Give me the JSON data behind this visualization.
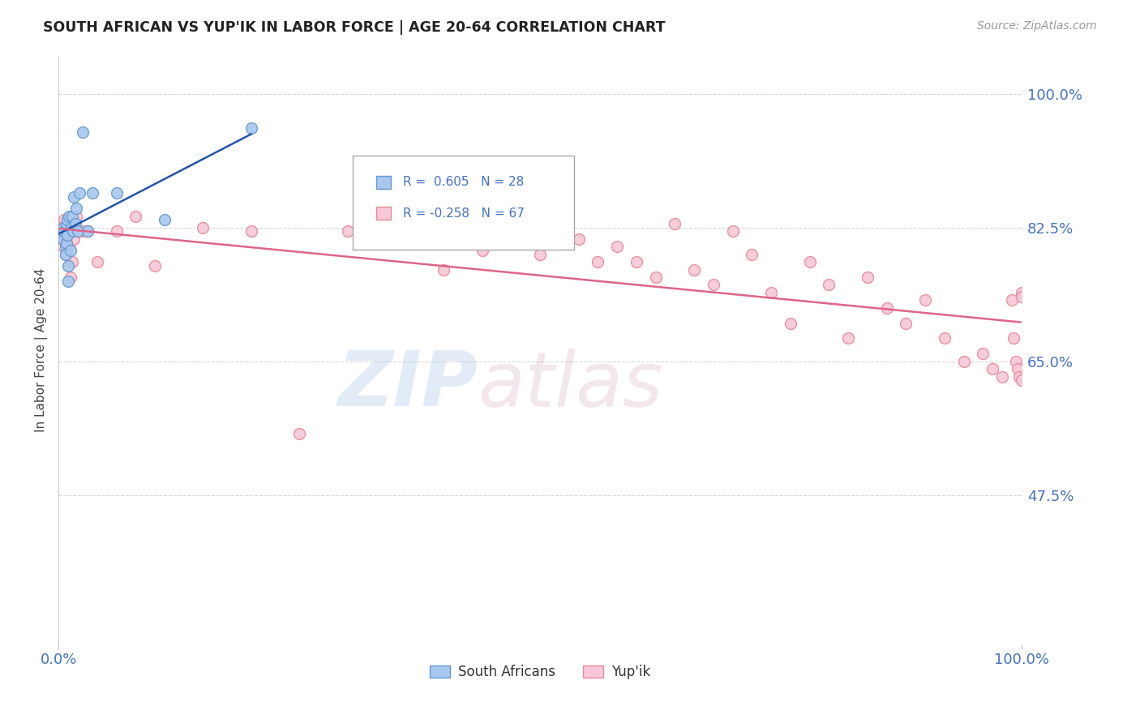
{
  "title": "SOUTH AFRICAN VS YUP'IK IN LABOR FORCE | AGE 20-64 CORRELATION CHART",
  "source": "Source: ZipAtlas.com",
  "ylabel": "In Labor Force | Age 20-64",
  "xlabel": "",
  "xlim": [
    0.0,
    1.0
  ],
  "ylim": [
    0.28,
    1.05
  ],
  "yticks": [
    0.475,
    0.65,
    0.825,
    1.0
  ],
  "ytick_labels": [
    "47.5%",
    "65.0%",
    "82.5%",
    "100.0%"
  ],
  "xtick_labels": [
    "0.0%",
    "100.0%"
  ],
  "xticks": [
    0.0,
    1.0
  ],
  "south_african_x": [
    0.005,
    0.005,
    0.005,
    0.006,
    0.007,
    0.007,
    0.008,
    0.008,
    0.009,
    0.009,
    0.01,
    0.01,
    0.011,
    0.012,
    0.013,
    0.014,
    0.015,
    0.016,
    0.017,
    0.018,
    0.02,
    0.022,
    0.025,
    0.03,
    0.035,
    0.06,
    0.11,
    0.2
  ],
  "south_african_y": [
    0.825,
    0.815,
    0.81,
    0.82,
    0.8,
    0.79,
    0.83,
    0.805,
    0.835,
    0.815,
    0.775,
    0.755,
    0.84,
    0.795,
    0.825,
    0.84,
    0.82,
    0.865,
    0.83,
    0.85,
    0.82,
    0.87,
    0.95,
    0.82,
    0.87,
    0.87,
    0.835,
    0.955
  ],
  "yupik_x": [
    0.003,
    0.004,
    0.005,
    0.006,
    0.006,
    0.007,
    0.008,
    0.009,
    0.01,
    0.011,
    0.012,
    0.013,
    0.014,
    0.015,
    0.016,
    0.018,
    0.02,
    0.025,
    0.03,
    0.04,
    0.06,
    0.08,
    0.1,
    0.15,
    0.2,
    0.25,
    0.3,
    0.35,
    0.4,
    0.42,
    0.44,
    0.46,
    0.48,
    0.5,
    0.52,
    0.54,
    0.56,
    0.58,
    0.6,
    0.62,
    0.64,
    0.66,
    0.68,
    0.7,
    0.72,
    0.74,
    0.76,
    0.78,
    0.8,
    0.82,
    0.84,
    0.86,
    0.88,
    0.9,
    0.92,
    0.94,
    0.96,
    0.97,
    0.98,
    0.99,
    0.992,
    0.994,
    0.996,
    0.998,
    1.0,
    1.0,
    1.0
  ],
  "yupik_y": [
    0.825,
    0.81,
    0.8,
    0.835,
    0.815,
    0.79,
    0.81,
    0.83,
    0.82,
    0.8,
    0.76,
    0.82,
    0.78,
    0.82,
    0.81,
    0.84,
    0.82,
    0.82,
    0.82,
    0.78,
    0.82,
    0.84,
    0.775,
    0.825,
    0.82,
    0.555,
    0.82,
    0.82,
    0.77,
    0.84,
    0.795,
    0.84,
    0.82,
    0.79,
    0.86,
    0.81,
    0.78,
    0.8,
    0.78,
    0.76,
    0.83,
    0.77,
    0.75,
    0.82,
    0.79,
    0.74,
    0.7,
    0.78,
    0.75,
    0.68,
    0.76,
    0.72,
    0.7,
    0.73,
    0.68,
    0.65,
    0.66,
    0.64,
    0.63,
    0.73,
    0.68,
    0.65,
    0.64,
    0.63,
    0.74,
    0.735,
    0.625
  ],
  "sa_color": "#a8c8f0",
  "sa_edge_color": "#6699cc",
  "yupik_color": "#f8c8d8",
  "yupik_edge_color": "#e88899",
  "sa_line_color": "#2255aa",
  "yupik_line_color": "#dd6688",
  "legend_R_sa": "R =  0.605",
  "legend_N_sa": "N = 28",
  "legend_R_yupik": "R = -0.258",
  "legend_N_yupik": "N = 67",
  "grid_color": "#d8d8d8",
  "background_color": "#ffffff",
  "watermark_text": "ZIP",
  "watermark_text2": "atlas",
  "title_color": "#222222",
  "axis_label_color": "#444444",
  "tick_color": "#4472c4",
  "marker_size": 100,
  "line_width": 1.8
}
